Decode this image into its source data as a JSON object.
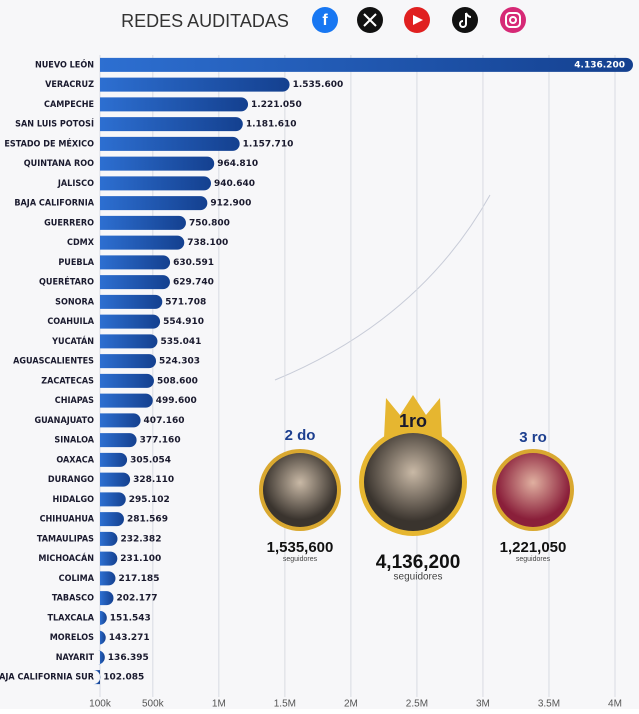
{
  "chart_data": {
    "type": "hbar",
    "title": "REDES AUDITADAS",
    "categories": [
      "NUEVO LEÓN",
      "VERACRUZ",
      "CAMPECHE",
      "SAN LUIS POTOSÍ",
      "ESTADO DE MÉXICO",
      "QUINTANA ROO",
      "JALISCO",
      "BAJA CALIFORNIA",
      "GUERRERO",
      "CDMX",
      "PUEBLA",
      "QUERÉTARO",
      "SONORA",
      "COAHUILA",
      "YUCATÁN",
      "AGUASCALIENTES",
      "ZACATECAS",
      "CHIAPAS",
      "GUANAJUATO",
      "SINALOA",
      "OAXACA",
      "DURANGO",
      "HIDALGO",
      "CHIHUAHUA",
      "TAMAULIPAS",
      "MICHOACÁN",
      "COLIMA",
      "TABASCO",
      "TLAXCALA",
      "MORELOS",
      "NAYARIT",
      "BAJA CALIFORNIA SUR"
    ],
    "values": [
      4136200,
      1535600,
      1221050,
      1181610,
      1157710,
      964810,
      940640,
      912900,
      750800,
      738100,
      630591,
      629740,
      571708,
      554910,
      535041,
      524303,
      508600,
      499600,
      407160,
      377160,
      305054,
      328110,
      295102,
      281569,
      232382,
      231100,
      217185,
      202177,
      151543,
      143271,
      136395,
      102085
    ],
    "value_labels": [
      "4.136.200",
      "1.535.600",
      "1.221.050",
      "1.181.610",
      "1.157.710",
      "964.810",
      "940.640",
      "912.900",
      "750.800",
      "738.100",
      "630.591",
      "629.740",
      "571.708",
      "554.910",
      "535.041",
      "524.303",
      "508.600",
      "499.600",
      "407.160",
      "377.160",
      "305.054",
      "328.110",
      "295.102",
      "281.569",
      "232.382",
      "231.100",
      "217.185",
      "202.177",
      "151.543",
      "143.271",
      "136.395",
      "102.085"
    ],
    "color": "#1f5bb5",
    "xlim": [
      100000,
      4000000
    ],
    "xticks": [
      {
        "value": 100000,
        "label": "100k"
      },
      {
        "value": 500000,
        "label": "500k"
      },
      {
        "value": 1000000,
        "label": "1M"
      },
      {
        "value": 1500000,
        "label": "1.5M"
      },
      {
        "value": 2000000,
        "label": "2M"
      },
      {
        "value": 2500000,
        "label": "2.5M"
      },
      {
        "value": 3000000,
        "label": "3M"
      },
      {
        "value": 3500000,
        "label": "3.5M"
      },
      {
        "value": 4000000,
        "label": "4M"
      }
    ],
    "grid": true,
    "podium": [
      {
        "rank": "2 do",
        "total": "1,535,600",
        "unit": "seguidores"
      },
      {
        "rank": "1ro",
        "total": "4,136,200",
        "unit": "seguidores"
      },
      {
        "rank": "3 ro",
        "total": "1,221,050",
        "unit": "seguidores"
      }
    ]
  }
}
